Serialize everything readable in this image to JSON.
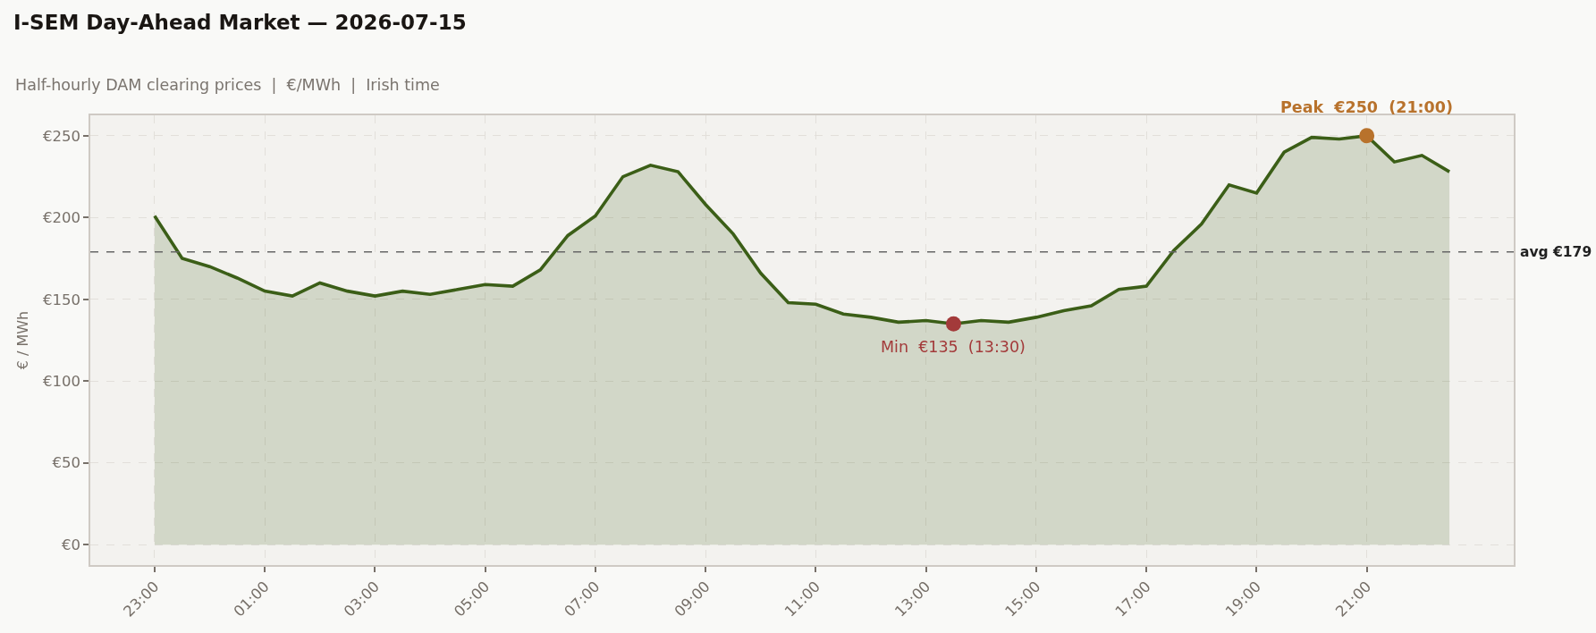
{
  "chart_data": {
    "type": "area",
    "title": "I-SEM Day-Ahead Market — 2026-07-15",
    "subtitle": "Half-hourly DAM clearing prices  |  €/MWh  |  Irish time",
    "ylabel": "€ / MWh",
    "x": [
      "2026-07-14T23:00",
      "2026-07-14T23:30",
      "2026-07-15T00:00",
      "2026-07-15T00:30",
      "2026-07-15T01:00",
      "2026-07-15T01:30",
      "2026-07-15T02:00",
      "2026-07-15T02:30",
      "2026-07-15T03:00",
      "2026-07-15T03:30",
      "2026-07-15T04:00",
      "2026-07-15T04:30",
      "2026-07-15T05:00",
      "2026-07-15T05:30",
      "2026-07-15T06:00",
      "2026-07-15T06:30",
      "2026-07-15T07:00",
      "2026-07-15T07:30",
      "2026-07-15T08:00",
      "2026-07-15T08:30",
      "2026-07-15T09:00",
      "2026-07-15T09:30",
      "2026-07-15T10:00",
      "2026-07-15T10:30",
      "2026-07-15T11:00",
      "2026-07-15T11:30",
      "2026-07-15T12:00",
      "2026-07-15T12:30",
      "2026-07-15T13:00",
      "2026-07-15T13:30",
      "2026-07-15T14:00",
      "2026-07-15T14:30",
      "2026-07-15T15:00",
      "2026-07-15T15:30",
      "2026-07-15T16:00",
      "2026-07-15T16:30",
      "2026-07-15T17:00",
      "2026-07-15T17:30",
      "2026-07-15T18:00",
      "2026-07-15T18:30",
      "2026-07-15T19:00",
      "2026-07-15T19:30",
      "2026-07-15T20:00",
      "2026-07-15T20:30",
      "2026-07-15T21:00",
      "2026-07-15T21:30",
      "2026-07-15T22:00",
      "2026-07-15T22:30"
    ],
    "series": [
      {
        "color": "#3b5e17",
        "values": [
          201,
          175,
          170,
          163,
          155,
          152,
          160,
          155,
          152,
          155,
          153,
          156,
          159,
          158,
          168,
          189,
          201,
          225,
          232,
          228,
          208,
          190,
          166,
          148,
          147,
          141,
          139,
          136,
          137,
          135,
          137,
          136,
          139,
          143,
          146,
          156,
          158,
          180,
          196,
          220,
          215,
          240,
          249,
          248,
          250,
          234,
          238,
          228
        ]
      }
    ],
    "xlim": [
      "2026-07-14T21:50",
      "2026-07-15T23:40"
    ],
    "xticks": [
      {
        "value": "2026-07-14T23:00",
        "label": "23:00"
      },
      {
        "value": "2026-07-15T01:00",
        "label": "01:00"
      },
      {
        "value": "2026-07-15T03:00",
        "label": "03:00"
      },
      {
        "value": "2026-07-15T05:00",
        "label": "05:00"
      },
      {
        "value": "2026-07-15T07:00",
        "label": "07:00"
      },
      {
        "value": "2026-07-15T09:00",
        "label": "09:00"
      },
      {
        "value": "2026-07-15T11:00",
        "label": "11:00"
      },
      {
        "value": "2026-07-15T13:00",
        "label": "13:00"
      },
      {
        "value": "2026-07-15T15:00",
        "label": "15:00"
      },
      {
        "value": "2026-07-15T17:00",
        "label": "17:00"
      },
      {
        "value": "2026-07-15T19:00",
        "label": "19:00"
      },
      {
        "value": "2026-07-15T21:00",
        "label": "21:00"
      }
    ],
    "ylim": [
      -12.5,
      262.5
    ],
    "yticks": [
      {
        "value": 0,
        "label": "€0"
      },
      {
        "value": 50,
        "label": "€50"
      },
      {
        "value": 100,
        "label": "€100"
      },
      {
        "value": 150,
        "label": "€150"
      },
      {
        "value": 200,
        "label": "€200"
      },
      {
        "value": 250,
        "label": "€250"
      }
    ],
    "ref_lines": [
      {
        "axis": "y",
        "value": 179,
        "label": "avg €179",
        "color": "#666666",
        "line_style": "dashed"
      }
    ],
    "annotations": [
      {
        "text": "Peak  €250  (21:00)",
        "x": "2026-07-15T21:00",
        "y": 250
      },
      {
        "text": "Min  €135  (13:30)",
        "x": "2026-07-15T13:30",
        "y": 135
      }
    ],
    "grid": true
  }
}
